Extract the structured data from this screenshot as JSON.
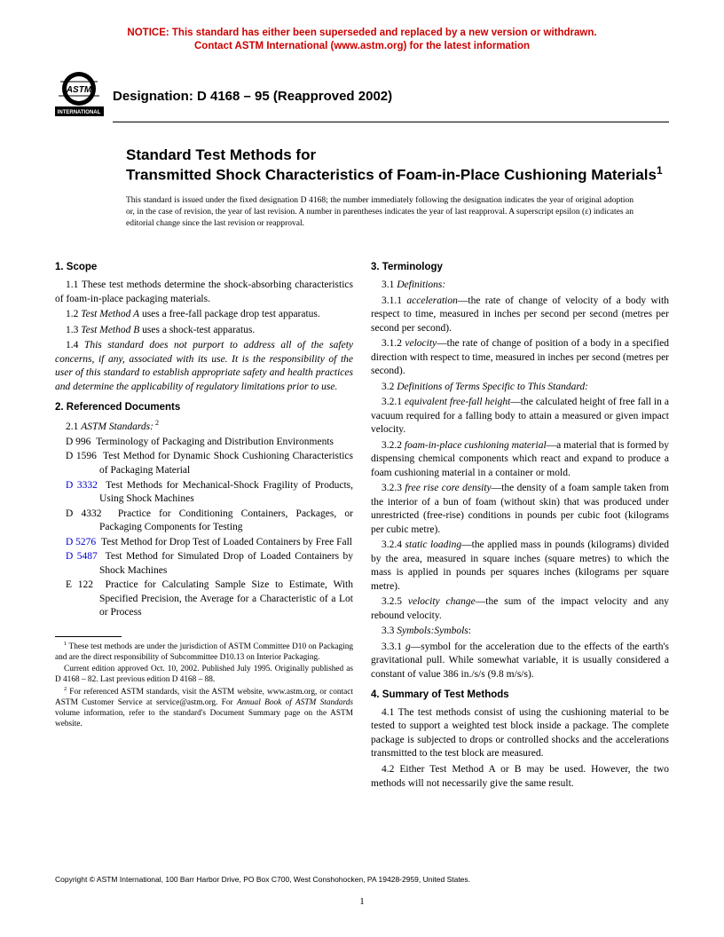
{
  "notice": {
    "line1": "NOTICE: This standard has either been superseded and replaced by a new version or withdrawn.",
    "line2": "Contact ASTM International (www.astm.org) for the latest information"
  },
  "header": {
    "designation_label": "Designation: D 4168 – 95 (Reapproved 2002)",
    "logo_text_top": "ASTM",
    "logo_text_bottom": "INTERNATIONAL"
  },
  "title": {
    "lead": "Standard Test Methods for",
    "main": "Transmitted Shock Characteristics of Foam-in-Place Cushioning Materials",
    "sup": "1"
  },
  "issuance": "This standard is issued under the fixed designation D 4168; the number immediately following the designation indicates the year of original adoption or, in the case of revision, the year of last revision. A number in parentheses indicates the year of last reapproval. A superscript epsilon (ε) indicates an editorial change since the last revision or reapproval.",
  "left": {
    "s1_head": "1. Scope",
    "s1_1": "1.1 These test methods determine the shock-absorbing characteristics of foam-in-place packaging materials.",
    "s1_2_a": "1.2 ",
    "s1_2_i": "Test Method A",
    "s1_2_b": " uses a free-fall package drop test apparatus.",
    "s1_3_a": "1.3 ",
    "s1_3_i": "Test Method B",
    "s1_3_b": " uses a shock-test apparatus.",
    "s1_4_a": "1.4 ",
    "s1_4_i": "This standard does not purport to address all of the safety concerns, if any, associated with its use. It is the responsibility of the user of this standard to establish appropriate safety and health practices and determine the applicability of regulatory limitations prior to use.",
    "s2_head": "2. Referenced Documents",
    "s2_1_a": "2.1 ",
    "s2_1_i": "ASTM Standards:",
    "s2_1_sup": " 2",
    "refs": [
      {
        "code": "D 996",
        "link": false,
        "text": "Terminology of Packaging and Distribution Environments"
      },
      {
        "code": "D 1596",
        "link": false,
        "text": "Test Method for Dynamic Shock Cushioning Characteristics of Packaging Material"
      },
      {
        "code": "D 3332",
        "link": true,
        "text": "Test Methods for Mechanical-Shock Fragility of Products, Using Shock Machines"
      },
      {
        "code": "D 4332",
        "link": false,
        "text": "Practice for Conditioning Containers, Packages, or Packaging Components for Testing"
      },
      {
        "code": "D 5276",
        "link": true,
        "text": "Test Method for Drop Test of Loaded Containers by Free Fall"
      },
      {
        "code": "D 5487",
        "link": true,
        "text": "Test Method for Simulated Drop of Loaded Containers by Shock Machines"
      },
      {
        "code": "E 122",
        "link": false,
        "text": "Practice for Calculating Sample Size to Estimate, With Specified Precision, the Average for a Characteristic of a Lot or Process"
      }
    ],
    "fn1_sup": "1",
    "fn1": " These test methods are under the jurisdiction of ASTM Committee D10 on Packaging and are the direct responsibility of Subcommittee D10.13 on Interior Packaging.",
    "fn1b": "Current edition approved Oct. 10, 2002. Published July 1995. Originally published as D 4168 – 82. Last previous edition D 4168 – 88.",
    "fn2_sup": "2",
    "fn2_a": " For referenced ASTM standards, visit the ASTM website, www.astm.org, or contact ASTM Customer Service at service@astm.org. For ",
    "fn2_i": "Annual Book of ASTM Standards",
    "fn2_b": " volume information, refer to the standard's Document Summary page on the ASTM website."
  },
  "right": {
    "s3_head": "3. Terminology",
    "s3_1_a": "3.1 ",
    "s3_1_i": "Definitions:",
    "s3_1_1_a": "3.1.1 ",
    "s3_1_1_t": "acceleration",
    "s3_1_1_b": "—the rate of change of velocity of a body with respect to time, measured in inches per second per second (metres per second per second).",
    "s3_1_2_a": "3.1.2 ",
    "s3_1_2_t": "velocity",
    "s3_1_2_b": "—the rate of change of position of a body in a specified direction with respect to time, measured in inches per second (metres per second).",
    "s3_2_a": "3.2 ",
    "s3_2_i": "Definitions of Terms Specific to This Standard:",
    "s3_2_1_a": "3.2.1 ",
    "s3_2_1_t": "equivalent free-fall height",
    "s3_2_1_b": "—the calculated height of free fall in a vacuum required for a falling body to attain a measured or given impact velocity.",
    "s3_2_2_a": "3.2.2 ",
    "s3_2_2_t": "foam-in-place cushioning material",
    "s3_2_2_b": "—a material that is formed by dispensing chemical components which react and expand to produce a foam cushioning material in a container or mold.",
    "s3_2_3_a": "3.2.3 ",
    "s3_2_3_t": "free rise core density",
    "s3_2_3_b": "—the density of a foam sample taken from the interior of a bun of foam (without skin) that was produced under unrestricted (free-rise) conditions in pounds per cubic foot (kilograms per cubic metre).",
    "s3_2_4_a": "3.2.4 ",
    "s3_2_4_t": "static loading",
    "s3_2_4_b": "—the applied mass in pounds (kilograms) divided by the area, measured in square inches (square metres) to which the mass is applied in pounds per squares inches (kilograms per square metre).",
    "s3_2_5_a": "3.2.5 ",
    "s3_2_5_t": "velocity change",
    "s3_2_5_b": "—the sum of the impact velocity and any rebound velocity.",
    "s3_3_a": "3.3 ",
    "s3_3_i": "Symbols:Symbols",
    "s3_3_suffix": ":",
    "s3_3_1_a": "3.3.1 ",
    "s3_3_1_t": "g",
    "s3_3_1_b": "—symbol for the acceleration due to the effects of the earth's gravitational pull. While somewhat variable, it is usually considered a constant of value 386 in./s/s (9.8 m/s/s).",
    "s4_head": "4. Summary of Test Methods",
    "s4_1": "4.1 The test methods consist of using the cushioning material to be tested to support a weighted test block inside a package. The complete package is subjected to drops or controlled shocks and the accelerations transmitted to the test block are measured.",
    "s4_2": "4.2 Either Test Method A or B may be used. However, the two methods will not necessarily give the same result."
  },
  "copyright": "Copyright © ASTM International, 100 Barr Harbor Drive, PO Box C700, West Conshohocken, PA 19428-2959, United States.",
  "page_number": "1"
}
